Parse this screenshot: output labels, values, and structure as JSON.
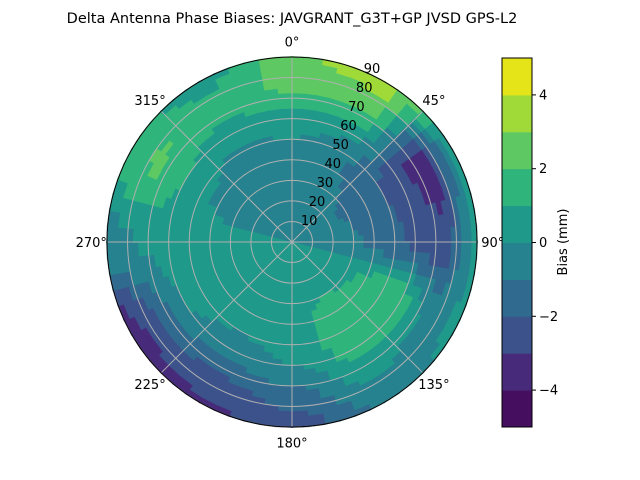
{
  "chart_data": {
    "type": "heatmap",
    "projection": "polar",
    "title": "Delta Antenna Phase Biases: JAVGRANT_G3T+GP JVSD GPS-L2",
    "theta_direction": "clockwise",
    "theta_zero": "north",
    "theta_tick_labels": [
      "0°",
      "45°",
      "90°",
      "135°",
      "180°",
      "225°",
      "270°",
      "315°"
    ],
    "radial_ticks": [
      10,
      20,
      30,
      40,
      50,
      60,
      70,
      80,
      90
    ],
    "radial_tick_labels": [
      "10",
      "20",
      "30",
      "40",
      "50",
      "60",
      "70",
      "80",
      "90"
    ],
    "rlim": [
      0,
      90
    ],
    "grid": true,
    "colormap": "viridis",
    "colorbar": {
      "label": "Bias (mm)",
      "levels": [
        -5,
        -4,
        -3,
        -2,
        -1,
        0,
        1,
        2,
        3,
        4,
        5
      ],
      "ticks": [
        -4,
        -2,
        0,
        2,
        4
      ],
      "tick_labels": [
        "−4",
        "−2",
        "0",
        "2",
        "4"
      ],
      "colors": [
        "#450e5f",
        "#472b7a",
        "#3b528b",
        "#306a8e",
        "#26828e",
        "#1f998a",
        "#2fb47c",
        "#5ec962",
        "#a0da39",
        "#e5e419"
      ]
    },
    "azimuth_deg": [
      0,
      30,
      60,
      90,
      120,
      150,
      180,
      210,
      240,
      270,
      300,
      330
    ],
    "zenith_deg": [
      0,
      15,
      30,
      45,
      60,
      75,
      90
    ],
    "bias_mm": [
      [
        0,
        -0.3,
        -0.5,
        -0.3,
        0.5,
        2.2,
        2.8
      ],
      [
        0,
        -0.3,
        -0.7,
        -1.0,
        0.3,
        2.5,
        3.5
      ],
      [
        0,
        -0.5,
        -1.2,
        -1.8,
        -2.6,
        -3.8,
        0.8
      ],
      [
        0,
        -0.3,
        -0.8,
        -1.4,
        -2.2,
        -2.8,
        0.5
      ],
      [
        0,
        0.3,
        0.8,
        1.5,
        1.6,
        -0.5,
        0.3
      ],
      [
        0,
        0.5,
        1.0,
        1.8,
        1.4,
        0.2,
        -1.0
      ],
      [
        0,
        0.3,
        0.5,
        0.5,
        0.0,
        -1.5,
        -2.5
      ],
      [
        0,
        0.3,
        0.5,
        0.3,
        -0.5,
        -2.2,
        -3.2
      ],
      [
        0,
        0.3,
        0.5,
        0.5,
        0.0,
        -2.0,
        -3.8
      ],
      [
        0,
        0.3,
        0.5,
        0.8,
        0.5,
        0.0,
        -0.5
      ],
      [
        0,
        -0.3,
        -0.5,
        0.0,
        1.0,
        2.2,
        1.5
      ],
      [
        0,
        -0.5,
        -0.8,
        -0.5,
        0.5,
        1.5,
        0.5
      ]
    ]
  }
}
